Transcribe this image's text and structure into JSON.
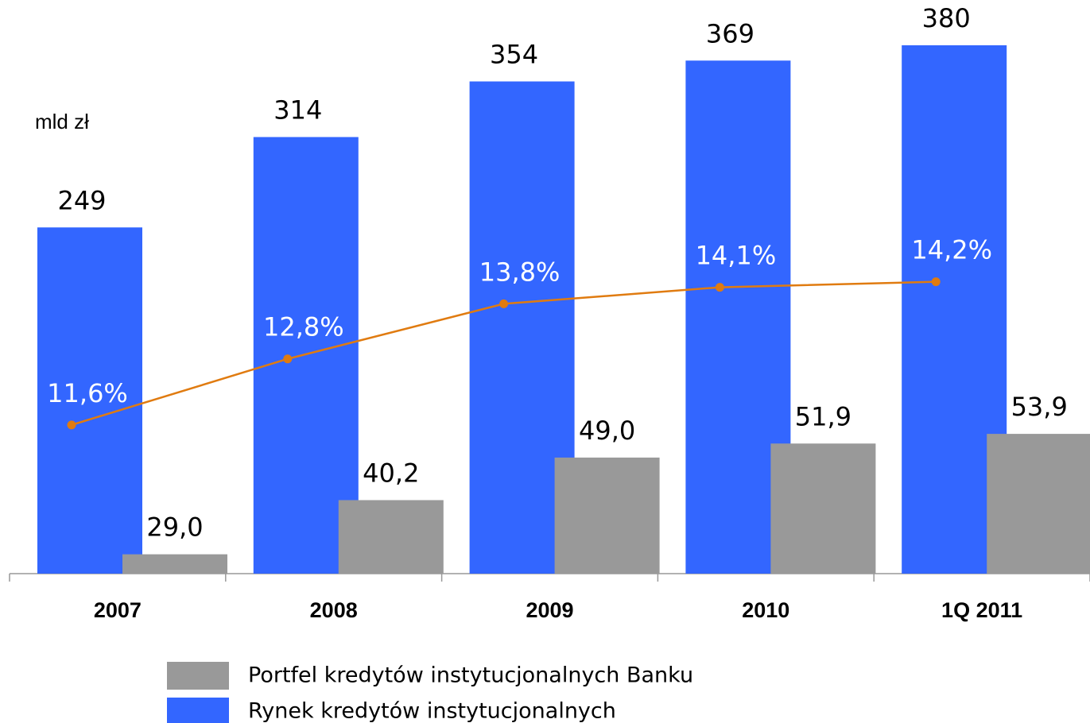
{
  "chart_data": {
    "type": "bar",
    "annotation": "mld zł",
    "categories": [
      "2007",
      "2008",
      "2009",
      "2010",
      "1Q 2011"
    ],
    "ylim": [
      0,
      400
    ],
    "y2lim": [
      25,
      140
    ],
    "y3lim": [
      8.9,
      19
    ],
    "series": [
      {
        "name": "Rynek kredytów instytucjonalnych",
        "color": "#3366ff",
        "type": "bar",
        "values": [
          249,
          314,
          354,
          369,
          380
        ]
      },
      {
        "name": "Portfel kredytów instytucjonalnych Banku",
        "color": "#999999",
        "type": "bar",
        "axis": "y2",
        "values": [
          29.0,
          40.2,
          49.0,
          51.9,
          53.9
        ],
        "value_labels": [
          "29,0",
          "40,2",
          "49,0",
          "51,9",
          "53,9"
        ]
      },
      {
        "type": "line",
        "color": "#e07b10",
        "axis": "y3",
        "values": [
          11.6,
          12.8,
          13.8,
          14.1,
          14.2
        ],
        "value_labels": [
          "11,6%",
          "12,8%",
          "13,8%",
          "14,1%",
          "14,2%"
        ]
      }
    ],
    "legend_order": [
      1,
      0
    ]
  }
}
